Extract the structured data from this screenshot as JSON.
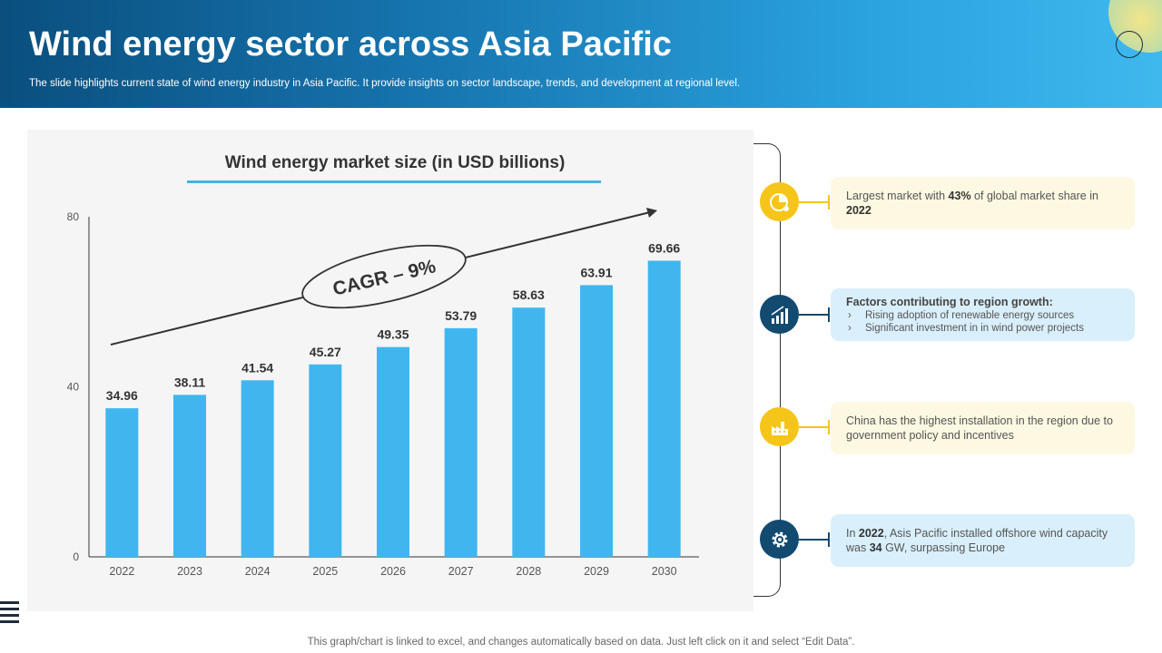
{
  "header": {
    "title": "Wind energy sector across Asia Pacific",
    "subtitle": "The slide highlights current state of wind energy industry in Asia Pacific. It provide insights on sector landscape, trends, and development at regional level."
  },
  "chart_data": {
    "type": "bar",
    "title": "Wind energy market size (in USD billions)",
    "categories": [
      "2022",
      "2023",
      "2024",
      "2025",
      "2026",
      "2027",
      "2028",
      "2029",
      "2030"
    ],
    "values": [
      34.96,
      38.11,
      41.54,
      45.27,
      49.35,
      53.79,
      58.63,
      63.91,
      69.66
    ],
    "ylim": [
      0,
      80
    ],
    "yticks": [
      0,
      40,
      80
    ],
    "bar_color": "#41b6ee",
    "annotation": "CAGR – 9%",
    "data_labels": true,
    "grid": false,
    "xlabel": "",
    "ylabel": ""
  },
  "highlights": [
    {
      "icon": "globe-pie-icon",
      "color": "#f6c519",
      "parts": [
        "Largest market with ",
        "43%",
        " of global market share in ",
        "2022"
      ]
    },
    {
      "icon": "bar-chart-icon",
      "color": "#124a70",
      "heading": "Factors contributing to region growth:",
      "bullets": [
        "Rising adoption of renewable energy sources",
        "Significant investment in in wind power projects"
      ]
    },
    {
      "icon": "factory-icon",
      "color": "#f6c519",
      "text": "China has the highest installation in the region due to government policy and incentives"
    },
    {
      "icon": "gear-icon",
      "color": "#124a70",
      "parts": [
        "In ",
        "2022",
        ", Asis Pacific installed offshore wind capacity was ",
        "34",
        " GW, surpassing Europe"
      ]
    }
  ],
  "footer": {
    "note": "This graph/chart is linked to excel, and changes automatically based on data. Just left click on it and select “Edit Data”."
  }
}
